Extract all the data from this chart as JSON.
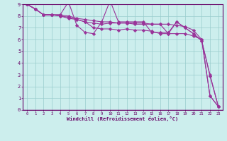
{
  "xlabel": "Windchill (Refroidissement éolien,°C)",
  "background_color": "#cceeed",
  "line_color": "#993399",
  "grid_color": "#99cccc",
  "axis_color": "#660066",
  "xlim": [
    -0.5,
    23.5
  ],
  "ylim": [
    0,
    9
  ],
  "xticks": [
    0,
    1,
    2,
    3,
    4,
    5,
    6,
    7,
    8,
    9,
    10,
    11,
    12,
    13,
    14,
    15,
    16,
    17,
    18,
    19,
    20,
    21,
    22,
    23
  ],
  "yticks": [
    0,
    1,
    2,
    3,
    4,
    5,
    6,
    7,
    8,
    9
  ],
  "series1": [
    9.0,
    8.6,
    8.1,
    8.1,
    8.1,
    9.2,
    7.2,
    6.6,
    6.5,
    7.5,
    9.3,
    7.5,
    7.5,
    7.5,
    7.5,
    6.6,
    6.6,
    6.6,
    7.5,
    7.0,
    6.5,
    5.9,
    3.0,
    0.3
  ],
  "series2": [
    9.0,
    8.6,
    8.1,
    8.1,
    8.1,
    8.0,
    7.8,
    7.7,
    7.6,
    7.5,
    7.5,
    7.4,
    7.4,
    7.4,
    7.4,
    7.3,
    7.3,
    7.3,
    7.2,
    7.1,
    6.8,
    6.0,
    1.2,
    0.3
  ],
  "series3": [
    9.0,
    8.6,
    8.1,
    8.1,
    8.0,
    7.9,
    7.7,
    7.5,
    7.4,
    7.3,
    7.4,
    7.4,
    7.4,
    7.3,
    7.3,
    7.3,
    7.3,
    6.5,
    7.5,
    7.0,
    6.5,
    5.9,
    2.9,
    0.3
  ],
  "series4": [
    9.0,
    8.6,
    8.1,
    8.1,
    8.0,
    7.8,
    7.7,
    7.5,
    7.0,
    6.9,
    6.9,
    6.8,
    6.9,
    6.8,
    6.8,
    6.7,
    6.5,
    6.5,
    6.5,
    6.5,
    6.3,
    6.0,
    1.2,
    0.3
  ]
}
